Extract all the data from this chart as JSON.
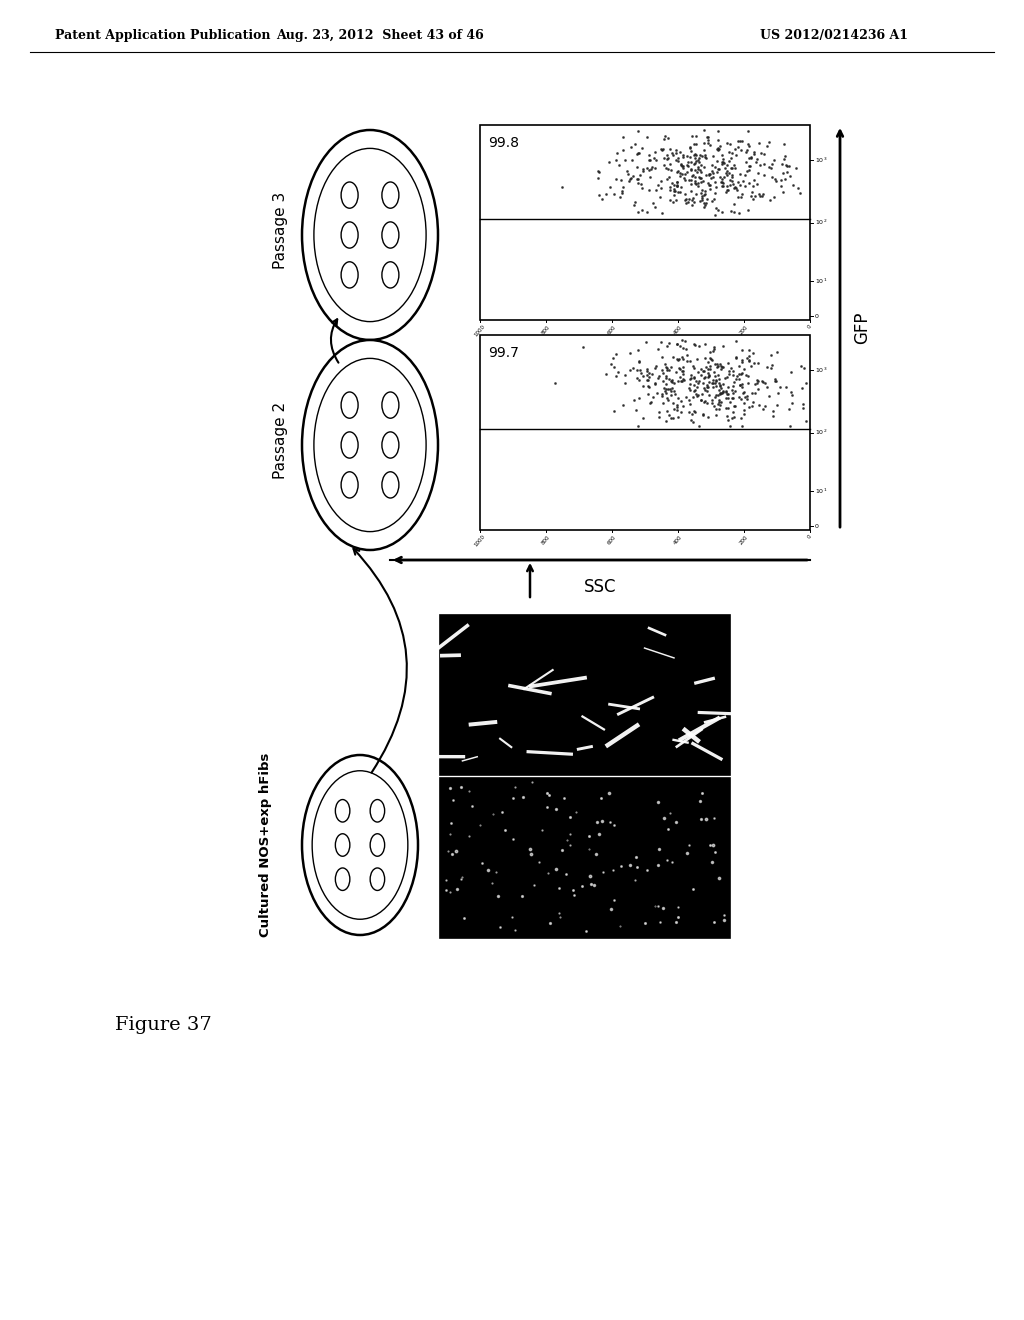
{
  "header_left": "Patent Application Publication",
  "header_middle": "Aug. 23, 2012  Sheet 43 of 46",
  "header_right": "US 2012/0214236 A1",
  "figure_label": "Figure 37",
  "passage2_label": "Passage 2",
  "passage3_label": "Passage 3",
  "cultured_label": "Cultured NOS+exp hFibs",
  "passage2_value": "99.7",
  "passage3_value": "99.8",
  "gfp_label": "GFP",
  "ssc_label": "SSC",
  "bg_color": "#ffffff",
  "scatter_color": "#333333",
  "image_bg": "#000000"
}
